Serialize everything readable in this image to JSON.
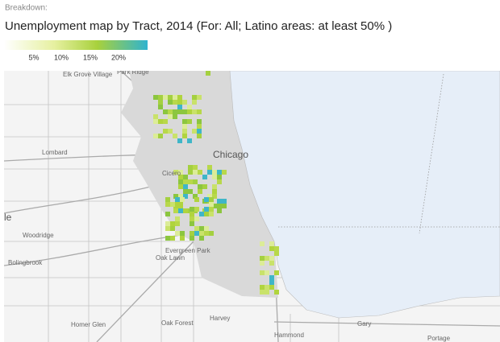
{
  "header": {
    "label": "Breakdown:",
    "title": "Unemployment map by Tract, 2014 (For: All; Latino areas: at least 50% )"
  },
  "legend": {
    "ticks": [
      "5%",
      "10%",
      "15%",
      "20%"
    ]
  },
  "map": {
    "places": [
      "Elk Grove Village",
      "Park Ridge",
      "Chicago",
      "Lombard",
      "Cicero",
      "le",
      "Woodridge",
      "Bolingbrook",
      "Evergreen Park",
      "Oak Lawn",
      "Homer Glen",
      "Oak Forest",
      "Harvey",
      "Hammond",
      "Gary",
      "Portage"
    ]
  }
}
